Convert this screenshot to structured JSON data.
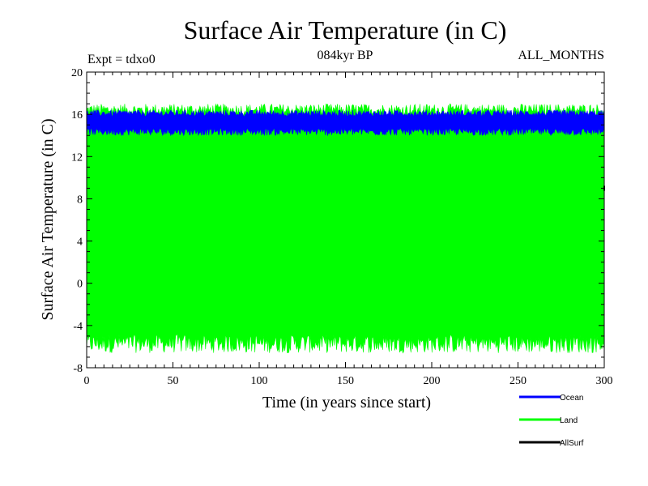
{
  "chart_data": {
    "type": "area",
    "title": "Surface Air Temperature (in C)",
    "subtitle_left": "Expt = tdxo0",
    "subtitle_center": "084kyr BP",
    "subtitle_right": "ALL_MONTHS",
    "xlabel": "Time (in years since start)",
    "ylabel": "Surface Air Temperature (in C)",
    "xlim": [
      0,
      300
    ],
    "ylim": [
      -8,
      20
    ],
    "xticks": [
      0,
      50,
      100,
      150,
      200,
      250,
      300
    ],
    "yticks": [
      -8,
      -4,
      0,
      4,
      8,
      12,
      16,
      20
    ],
    "grid": false,
    "legend_position": "bottom-right, outside plot",
    "series": [
      {
        "name": "Land",
        "color": "#00ff00",
        "description": "monthly land-mean values oscillating between winter minima and summer maxima",
        "min_range": [
          -6.6,
          -4.8
        ],
        "max_range": [
          15.8,
          17.0
        ],
        "typical_min": -5.7,
        "typical_max": 16.3
      },
      {
        "name": "Ocean",
        "color": "#0000ff",
        "description": "monthly ocean-mean values in a narrow band",
        "min_range": [
          14.0,
          14.7
        ],
        "max_range": [
          15.8,
          16.4
        ],
        "typical_min": 14.5,
        "typical_max": 16.0
      },
      {
        "name": "AllSurf",
        "color": "#000000",
        "description": "mostly hidden behind other series; visible only as a few points near the right edge",
        "visible_points": [
          {
            "x": 300,
            "y": 9.0
          }
        ]
      }
    ]
  }
}
